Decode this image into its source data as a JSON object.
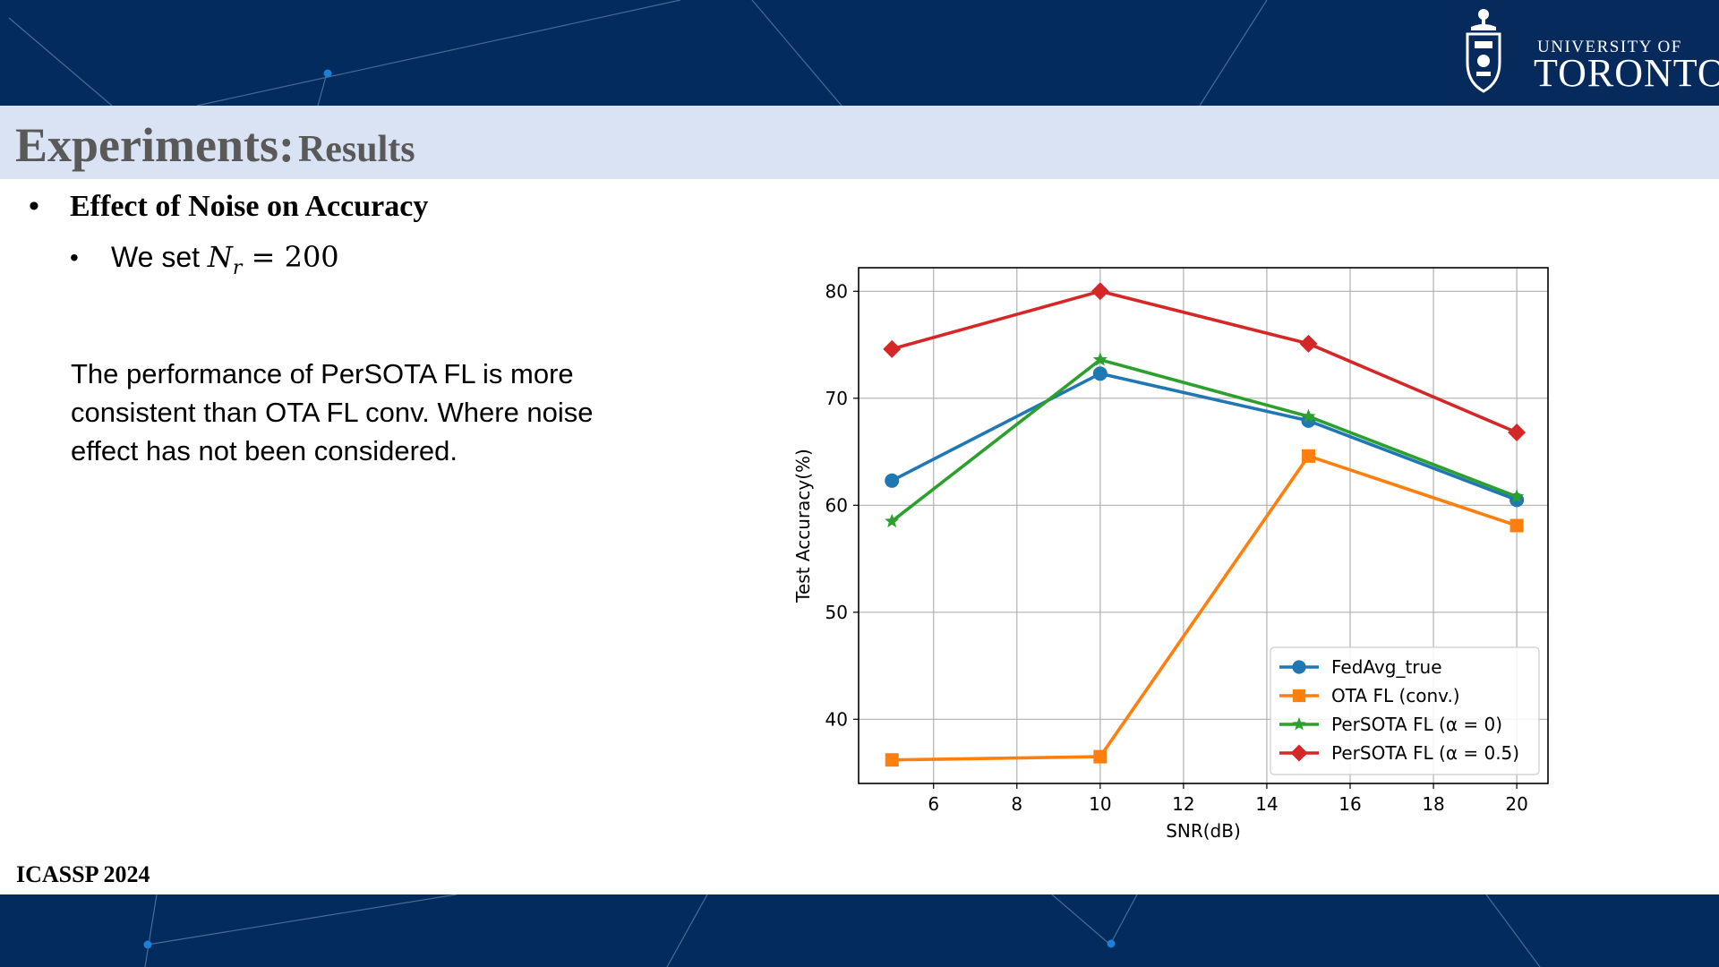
{
  "slide": {
    "title_main": "Experiments:",
    "title_sub": "Results",
    "bullet1_marker": "•",
    "bullet1": "Effect of Noise on Accuracy",
    "bullet2_marker": "•",
    "bullet2_prefix": "We set ",
    "bullet2_var": "N",
    "bullet2_sub": "r",
    "bullet2_value": " = 200",
    "paragraph": "The performance of PerSOTA FL is more consistent than OTA FL conv. Where noise effect has not been considered.",
    "footer": "ICASSP 2024",
    "logo_line1": "UNIVERSITY OF",
    "logo_line2": "TORONTO"
  },
  "colors": {
    "band": "#032b5e",
    "title_bar": "#dae3f3",
    "title_text": "#595959"
  },
  "chart_data": {
    "type": "line",
    "title": "",
    "xlabel": "SNR(dB)",
    "ylabel": "Test Accuracy(%)",
    "xlim": [
      4.2,
      20.75
    ],
    "ylim": [
      34,
      82.2
    ],
    "xticks": [
      6,
      8,
      10,
      12,
      14,
      16,
      18,
      20
    ],
    "yticks": [
      40,
      50,
      60,
      70,
      80
    ],
    "grid": true,
    "legend_position": "lower-right",
    "x": [
      5,
      10,
      15,
      20
    ],
    "series": [
      {
        "name": "FedAvg_true",
        "color": "#1f77b4",
        "marker": "circle",
        "values": [
          62.3,
          72.3,
          67.9,
          60.5
        ]
      },
      {
        "name": "OTA FL (conv.)",
        "color": "#ff7f0e",
        "marker": "square",
        "values": [
          36.2,
          36.5,
          64.6,
          58.1
        ]
      },
      {
        "name": "PerSOTA FL (α = 0)",
        "color": "#2ca02c",
        "marker": "star",
        "values": [
          58.5,
          73.6,
          68.3,
          60.8
        ]
      },
      {
        "name": "PerSOTA FL (α = 0.5)",
        "color": "#d62728",
        "marker": "diamond",
        "values": [
          74.6,
          80.0,
          75.1,
          66.8
        ]
      }
    ]
  }
}
